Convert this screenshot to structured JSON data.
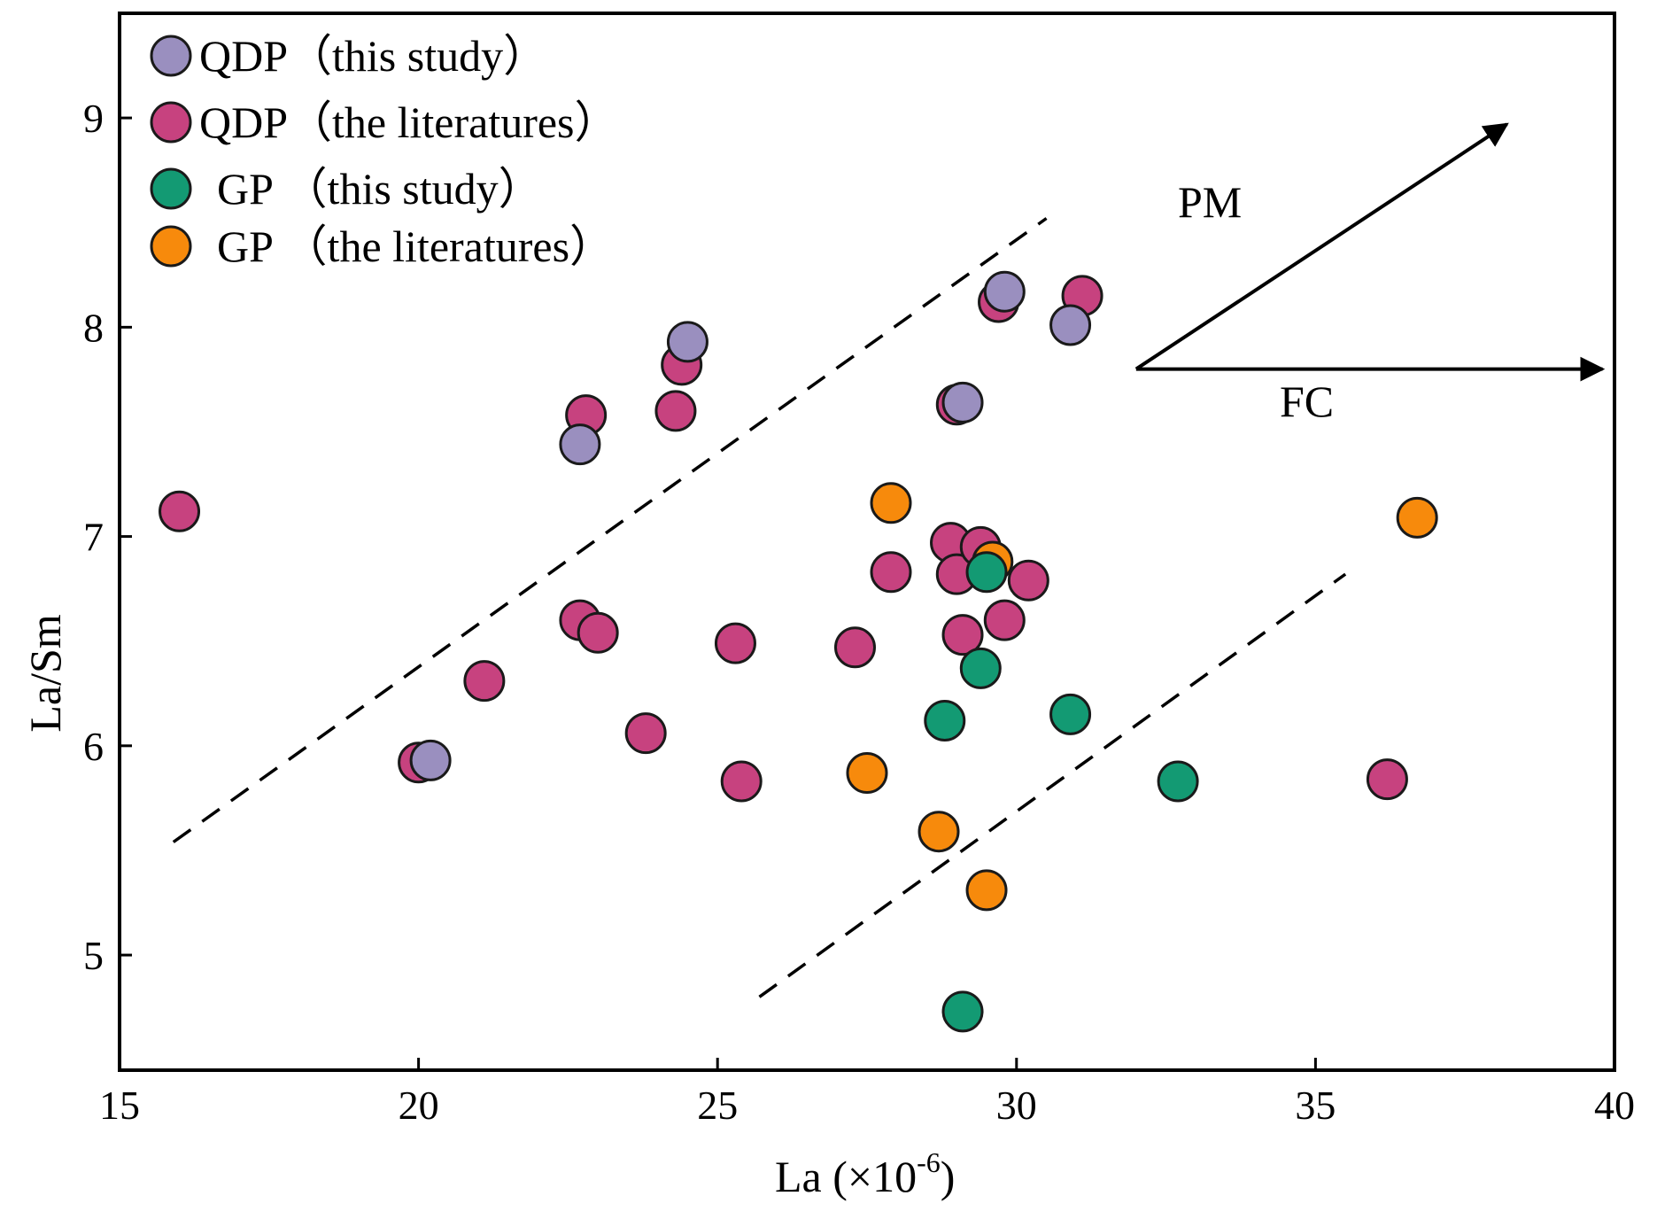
{
  "chart_data": {
    "type": "scatter",
    "title": "",
    "xlabel": "La (×10",
    "xlabel_sup": "-6",
    "xlabel_close": ")",
    "ylabel": "La/Sm",
    "xlim": [
      15,
      40
    ],
    "ylim": [
      4.45,
      9.5
    ],
    "xticks": [
      15,
      20,
      25,
      30,
      35,
      40
    ],
    "yticks": [
      5,
      6,
      7,
      8,
      9
    ],
    "legend_position": "top-left",
    "series": [
      {
        "name": "QDP（the literatures）",
        "color": "#c7427f",
        "points": [
          [
            16.0,
            7.12
          ],
          [
            20.0,
            5.92
          ],
          [
            21.1,
            6.31
          ],
          [
            22.7,
            6.6
          ],
          [
            23.0,
            6.54
          ],
          [
            22.8,
            7.58
          ],
          [
            23.8,
            6.06
          ],
          [
            24.3,
            7.6
          ],
          [
            24.4,
            7.82
          ],
          [
            25.3,
            6.49
          ],
          [
            25.4,
            5.83
          ],
          [
            27.3,
            6.47
          ],
          [
            27.9,
            6.83
          ],
          [
            28.9,
            6.97
          ],
          [
            29.0,
            6.82
          ],
          [
            29.1,
            6.53
          ],
          [
            29.4,
            6.95
          ],
          [
            29.8,
            6.6
          ],
          [
            30.2,
            6.79
          ],
          [
            29.0,
            7.63
          ],
          [
            29.7,
            8.12
          ],
          [
            31.1,
            8.15
          ],
          [
            36.2,
            5.84
          ]
        ]
      },
      {
        "name": "QDP（this study）",
        "color": "#9a8fbf",
        "points": [
          [
            20.2,
            5.93
          ],
          [
            22.7,
            7.44
          ],
          [
            24.5,
            7.93
          ],
          [
            29.1,
            7.64
          ],
          [
            29.8,
            8.17
          ],
          [
            30.9,
            8.01
          ]
        ]
      },
      {
        "name": "GP （the literatures）",
        "color": "#f78a0c",
        "points": [
          [
            27.9,
            7.16
          ],
          [
            27.5,
            5.87
          ],
          [
            28.7,
            5.59
          ],
          [
            29.5,
            5.31
          ],
          [
            29.6,
            6.88
          ],
          [
            36.7,
            7.09
          ]
        ]
      },
      {
        "name": "GP （this study）",
        "color": "#139a73",
        "points": [
          [
            28.8,
            6.12
          ],
          [
            29.4,
            6.37
          ],
          [
            29.5,
            6.83
          ],
          [
            30.9,
            6.15
          ],
          [
            32.7,
            5.83
          ],
          [
            29.1,
            4.73
          ]
        ]
      }
    ],
    "legend": [
      {
        "label": "QDP（this study）",
        "color": "#9a8fbf"
      },
      {
        "label": "QDP（the literatures）",
        "color": "#c7427f"
      },
      {
        "label": "GP （this study）",
        "color": "#139a73"
      },
      {
        "label": "GP （the literatures）",
        "color": "#f78a0c"
      }
    ],
    "dashed_lines": [
      {
        "from": [
          15.9,
          5.54
        ],
        "to": [
          30.5,
          8.52
        ]
      },
      {
        "from": [
          25.7,
          4.8
        ],
        "to": [
          35.5,
          6.82
        ]
      }
    ],
    "annotations": {
      "pm_label": "PM",
      "fc_label": "FC",
      "arrow_origin": [
        32.0,
        7.8
      ],
      "pm_arrow_end": [
        38.2,
        8.97
      ],
      "fc_arrow_end": [
        39.8,
        7.8
      ]
    }
  }
}
